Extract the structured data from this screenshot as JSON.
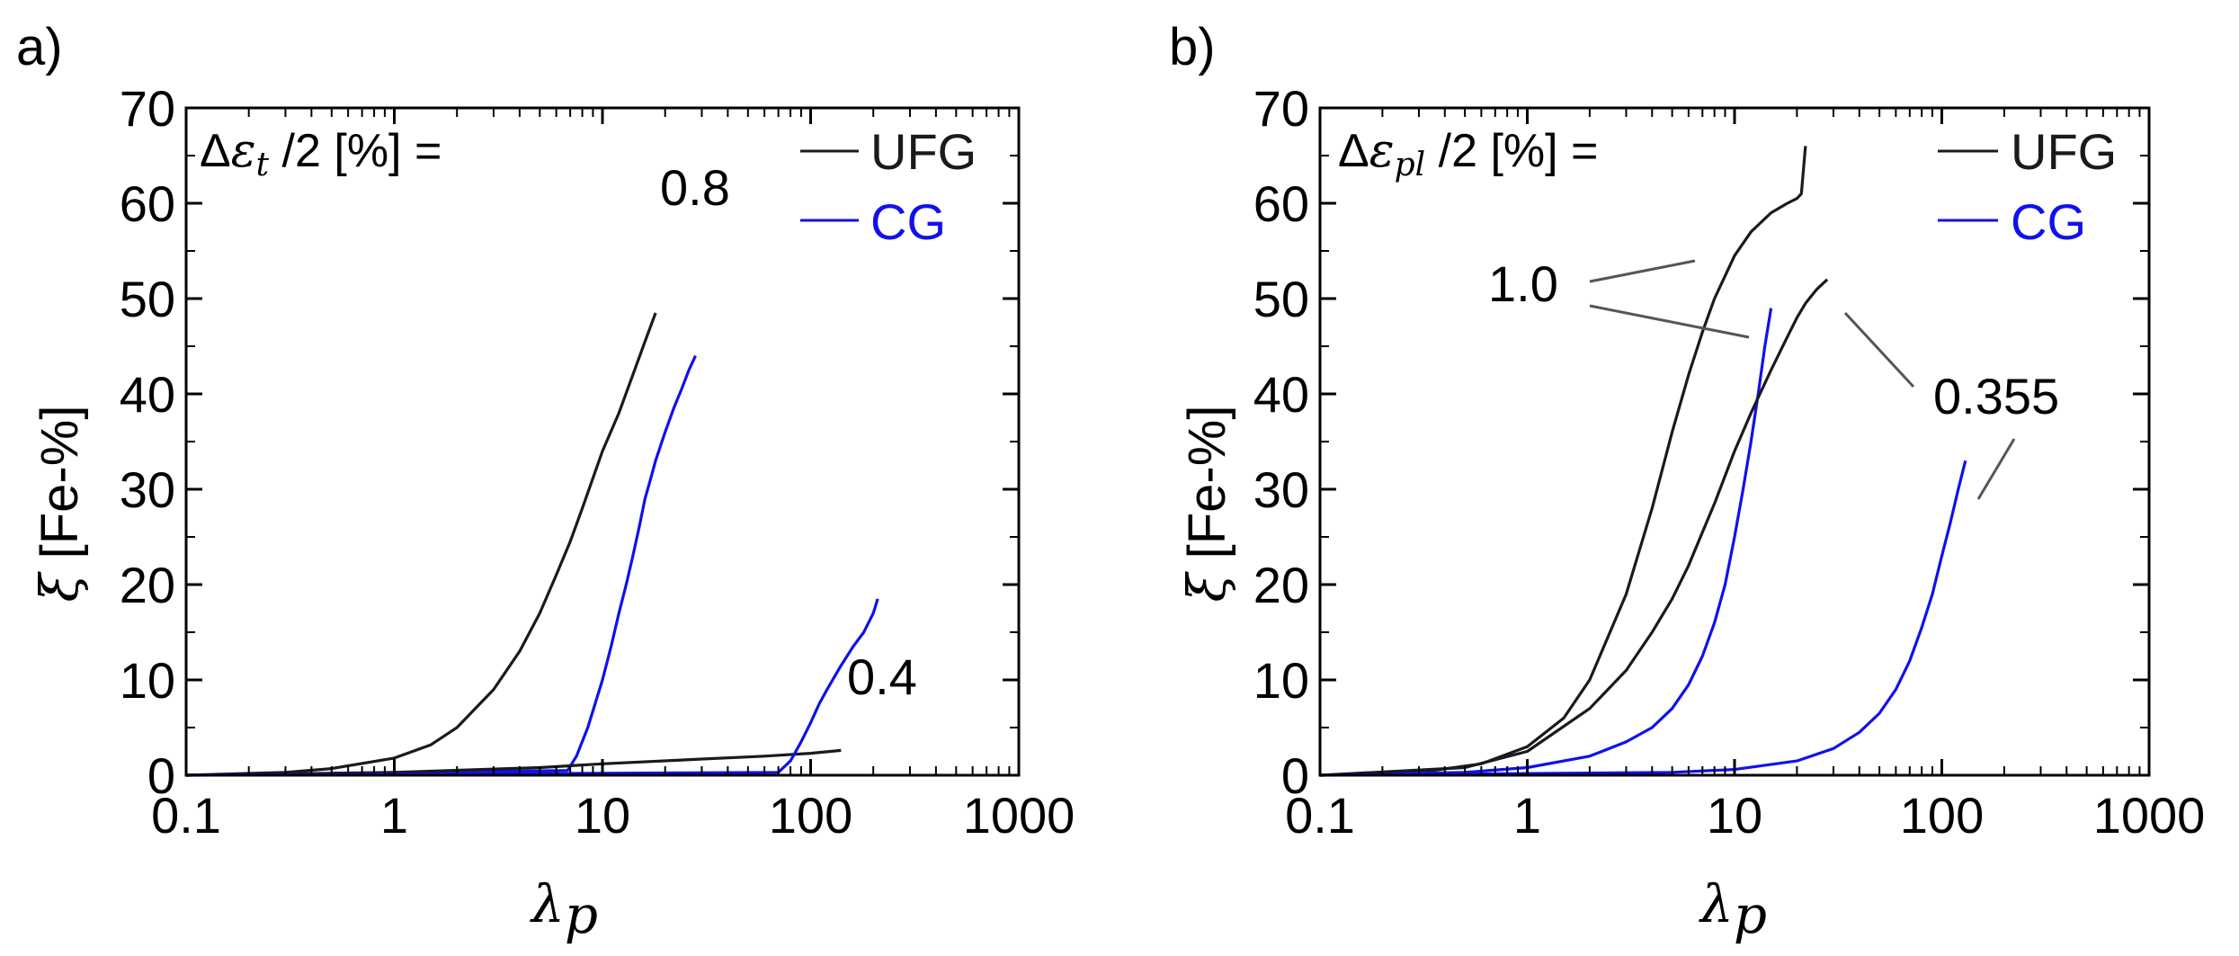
{
  "colors": {
    "UFG": "#1a1a1a",
    "CG": "#1010ee",
    "axis": "#000000"
  },
  "chart_data": [
    {
      "type": "line",
      "panel_letter": "a)",
      "strain_label_prefix": "Δ",
      "strain_symbol": "ε",
      "strain_subscript": "t",
      "strain_label_suffix": " /2 [%] =",
      "xlabel_symbol": "λ",
      "xlabel_subscript": "p",
      "ylabel_symbol": "ξ",
      "ylabel_unit": " [Fe-%]",
      "xscale": "log",
      "xlim": [
        0.1,
        1000
      ],
      "ylim": [
        0,
        70
      ],
      "xticks": [
        0.1,
        1,
        10,
        100,
        1000
      ],
      "xtick_labels": [
        "0.1",
        "1",
        "10",
        "100",
        "1000"
      ],
      "yticks": [
        0,
        10,
        20,
        30,
        40,
        50,
        60,
        70
      ],
      "ytick_labels": [
        "0",
        "10",
        "20",
        "30",
        "40",
        "50",
        "60",
        "70"
      ],
      "legend": [
        {
          "name": "UFG"
        },
        {
          "name": "CG"
        }
      ],
      "legend_position": "top-right",
      "annotations": [
        "0.8",
        "0.4"
      ],
      "series": [
        {
          "name": "UFG",
          "label": "0.8",
          "x": [
            0.1,
            0.3,
            0.5,
            1,
            1.5,
            2,
            3,
            4,
            5,
            6,
            7,
            8,
            10,
            12,
            14,
            16,
            18
          ],
          "y": [
            0,
            0.3,
            0.7,
            1.8,
            3.2,
            5,
            9,
            13,
            17,
            21,
            24.5,
            28,
            34,
            38,
            42,
            45.5,
            48.5
          ]
        },
        {
          "name": "CG",
          "label": "0.8",
          "x": [
            0.1,
            6.8,
            7.5,
            8.5,
            10,
            11,
            12,
            13,
            14,
            15,
            16,
            17,
            18,
            20,
            22,
            24,
            26,
            28
          ],
          "y": [
            0,
            0.5,
            2,
            5,
            10,
            13.5,
            17,
            20,
            23,
            26,
            29,
            31,
            33,
            36,
            38.5,
            40.5,
            42.5,
            44
          ]
        },
        {
          "name": "UFG",
          "label": "0.4",
          "x": [
            0.1,
            1,
            5,
            10,
            30,
            60,
            100,
            140
          ],
          "y": [
            0,
            0.3,
            0.8,
            1.2,
            1.7,
            2.0,
            2.3,
            2.6
          ]
        },
        {
          "name": "CG",
          "label": "0.4",
          "x": [
            0.1,
            70,
            80,
            90,
            100,
            110,
            120,
            140,
            160,
            180,
            200,
            210
          ],
          "y": [
            0,
            0.3,
            1.5,
            3.5,
            5.5,
            7.5,
            9,
            11.5,
            13.5,
            15,
            17,
            18.5
          ]
        }
      ]
    },
    {
      "type": "line",
      "panel_letter": "b)",
      "strain_label_prefix": "Δ",
      "strain_symbol": "ε",
      "strain_subscript": "pl",
      "strain_label_suffix": " /2 [%] =",
      "xlabel_symbol": "λ",
      "xlabel_subscript": "p",
      "ylabel_symbol": "ξ",
      "ylabel_unit": " [Fe-%]",
      "xscale": "log",
      "xlim": [
        0.1,
        1000
      ],
      "ylim": [
        0,
        70
      ],
      "xticks": [
        0.1,
        1,
        10,
        100,
        1000
      ],
      "xtick_labels": [
        "0.1",
        "1",
        "10",
        "100",
        "1000"
      ],
      "yticks": [
        0,
        10,
        20,
        30,
        40,
        50,
        60,
        70
      ],
      "ytick_labels": [
        "0",
        "10",
        "20",
        "30",
        "40",
        "50",
        "60",
        "70"
      ],
      "legend": [
        {
          "name": "UFG"
        },
        {
          "name": "CG"
        }
      ],
      "legend_position": "top-right",
      "annotations": [
        "1.0",
        "0.355"
      ],
      "series": [
        {
          "name": "UFG",
          "label": "1.0",
          "x": [
            0.1,
            0.3,
            0.6,
            1,
            1.5,
            2,
            3,
            4,
            5,
            6,
            7,
            8,
            10,
            12,
            15,
            18,
            20,
            21,
            21.5,
            22
          ],
          "y": [
            0,
            0.3,
            1.2,
            3,
            6,
            10,
            19,
            28,
            36,
            42,
            46.5,
            50,
            54.5,
            57,
            59,
            60,
            60.5,
            61,
            63.5,
            66
          ]
        },
        {
          "name": "CG",
          "label": "1.0",
          "x": [
            0.1,
            0.5,
            1,
            2,
            3,
            4,
            5,
            6,
            7,
            8,
            9,
            10,
            11,
            12,
            13,
            14,
            15
          ],
          "y": [
            0,
            0.3,
            0.8,
            2,
            3.5,
            5,
            7,
            9.5,
            12.5,
            16,
            20,
            25,
            30,
            35,
            40,
            45,
            49
          ]
        },
        {
          "name": "UFG",
          "label": "0.355",
          "x": [
            0.1,
            0.5,
            1,
            2,
            3,
            4,
            5,
            6,
            7,
            8,
            10,
            12,
            15,
            18,
            20,
            22,
            25,
            28
          ],
          "y": [
            0,
            0.8,
            2.5,
            7,
            11,
            15,
            18.5,
            22,
            25.5,
            28.5,
            34,
            38,
            42.5,
            46,
            48,
            49.5,
            51,
            52
          ]
        },
        {
          "name": "CG",
          "label": "0.355",
          "x": [
            0.1,
            5,
            10,
            20,
            30,
            40,
            50,
            60,
            70,
            80,
            90,
            100,
            110,
            120,
            130
          ],
          "y": [
            0,
            0.3,
            0.6,
            1.5,
            2.8,
            4.5,
            6.5,
            9,
            12,
            15.5,
            19,
            23,
            26.5,
            30,
            33
          ]
        }
      ]
    }
  ]
}
